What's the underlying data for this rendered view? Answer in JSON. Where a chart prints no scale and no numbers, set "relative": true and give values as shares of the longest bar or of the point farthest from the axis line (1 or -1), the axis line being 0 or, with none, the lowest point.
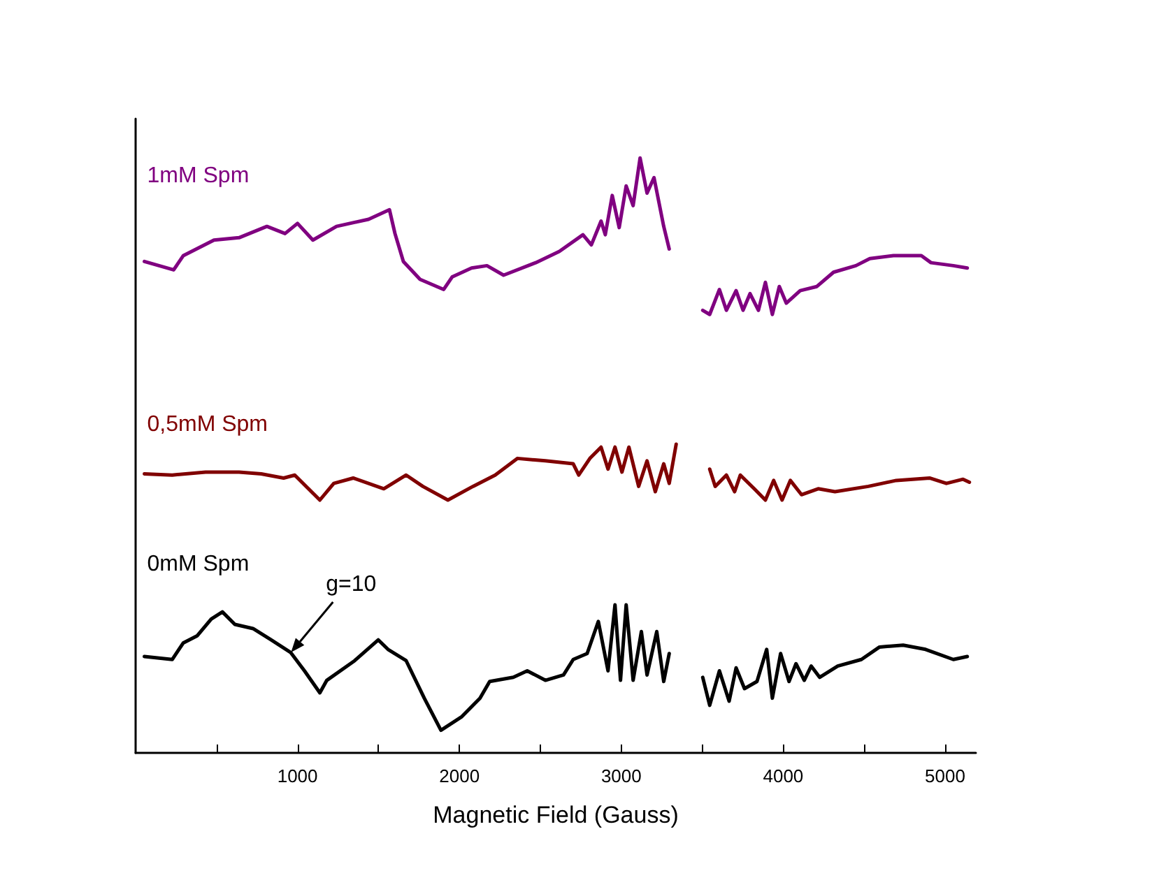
{
  "chart_data": {
    "type": "line",
    "relative": true,
    "xlabel": "Magnetic Field (Gauss)",
    "xlim": [
      0,
      5190
    ],
    "xticks": [
      {
        "value": 500,
        "label": null
      },
      1000,
      {
        "value": 1500,
        "label": null
      },
      2000,
      {
        "value": 2500,
        "label": null
      },
      3000,
      {
        "value": 3500,
        "label": null
      },
      4000,
      {
        "value": 4500,
        "label": null
      },
      5000
    ],
    "tick_labels": "x",
    "grid": false,
    "legend": false,
    "marker": "none",
    "line_style": "solid",
    "annotations": [
      {
        "text": "g=10",
        "x": 960,
        "y": 0.169
      }
    ],
    "series": [
      {
        "name": "1mM Spm",
        "color": "#800080",
        "x": [
          54,
          235,
          295,
          484,
          639,
          811,
          923,
          1000,
          1095,
          1241,
          1439,
          1568,
          1602,
          1654,
          1757,
          1903,
          1955,
          2075,
          2170,
          2273,
          2471,
          2617,
          2763,
          2815,
          2875,
          2901,
          2944,
          2987,
          3030,
          3073,
          3116,
          3159,
          3202,
          3262,
          3296,
          3400,
          3503,
          3546,
          3606,
          3649,
          3709,
          3752,
          3795,
          3847,
          3890,
          3933,
          3976,
          4019,
          4105,
          4208,
          4311,
          4449,
          4535,
          4681,
          4853,
          4913,
          5051,
          5137
        ],
        "values": [
          0.826,
          0.812,
          0.836,
          0.862,
          0.866,
          0.885,
          0.873,
          0.89,
          0.862,
          0.885,
          0.897,
          0.913,
          0.873,
          0.826,
          0.796,
          0.779,
          0.8,
          0.815,
          0.819,
          0.803,
          0.824,
          0.843,
          0.871,
          0.854,
          0.894,
          0.871,
          0.937,
          0.883,
          0.953,
          0.92,
          1.0,
          0.941,
          0.967,
          0.885,
          0.847,
          null,
          0.744,
          0.737,
          0.779,
          0.744,
          0.777,
          0.744,
          0.772,
          0.744,
          0.791,
          0.737,
          0.784,
          0.756,
          0.777,
          0.784,
          0.808,
          0.819,
          0.831,
          0.836,
          0.836,
          0.824,
          0.819,
          0.815
        ]
      },
      {
        "name": "0,5mM Spm",
        "color": "#800000",
        "x": [
          54,
          226,
          432,
          639,
          776,
          914,
          983,
          1138,
          1224,
          1344,
          1533,
          1671,
          1774,
          1929,
          2084,
          2221,
          2359,
          2531,
          2703,
          2737,
          2806,
          2875,
          2918,
          2961,
          3004,
          3047,
          3107,
          3159,
          3210,
          3262,
          3296,
          3339,
          3440,
          3546,
          3580,
          3649,
          3700,
          3735,
          3821,
          3890,
          3941,
          3993,
          4044,
          4113,
          4216,
          4320,
          4526,
          4698,
          4904,
          5008,
          5111,
          5150
        ],
        "values": [
          0.469,
          0.467,
          0.472,
          0.472,
          0.469,
          0.462,
          0.467,
          0.425,
          0.453,
          0.462,
          0.444,
          0.467,
          0.448,
          0.425,
          0.448,
          0.467,
          0.495,
          0.491,
          0.486,
          0.467,
          0.495,
          0.514,
          0.477,
          0.514,
          0.472,
          0.514,
          0.448,
          0.491,
          0.439,
          0.486,
          0.453,
          0.519,
          null,
          0.477,
          0.448,
          0.467,
          0.439,
          0.467,
          0.444,
          0.425,
          0.458,
          0.425,
          0.458,
          0.434,
          0.444,
          0.439,
          0.448,
          0.458,
          0.462,
          0.453,
          0.46,
          0.455
        ]
      },
      {
        "name": "0mM Spm",
        "color": "#000000",
        "x": [
          54,
          226,
          295,
          381,
          467,
          536,
          613,
          725,
          837,
          957,
          1043,
          1138,
          1181,
          1353,
          1499,
          1559,
          1671,
          1783,
          1886,
          2015,
          2127,
          2187,
          2333,
          2419,
          2531,
          2643,
          2703,
          2789,
          2858,
          2918,
          2961,
          2995,
          3030,
          3073,
          3124,
          3159,
          3219,
          3262,
          3296,
          3400,
          3503,
          3546,
          3606,
          3666,
          3709,
          3761,
          3838,
          3898,
          3933,
          3984,
          4036,
          4079,
          4130,
          4173,
          4225,
          4337,
          4483,
          4595,
          4741,
          4879,
          5051,
          5137
        ],
        "values": [
          0.162,
          0.157,
          0.185,
          0.197,
          0.225,
          0.237,
          0.216,
          0.209,
          0.19,
          0.169,
          0.138,
          0.101,
          0.122,
          0.155,
          0.19,
          0.174,
          0.155,
          0.092,
          0.038,
          0.061,
          0.092,
          0.12,
          0.127,
          0.138,
          0.122,
          0.131,
          0.157,
          0.167,
          0.221,
          0.138,
          0.249,
          0.122,
          0.249,
          0.122,
          0.204,
          0.131,
          0.204,
          0.12,
          0.167,
          null,
          0.127,
          0.08,
          0.138,
          0.087,
          0.143,
          0.108,
          0.12,
          0.174,
          0.092,
          0.167,
          0.12,
          0.15,
          0.122,
          0.146,
          0.127,
          0.146,
          0.157,
          0.178,
          0.181,
          0.174,
          0.157,
          0.162
        ]
      }
    ]
  }
}
